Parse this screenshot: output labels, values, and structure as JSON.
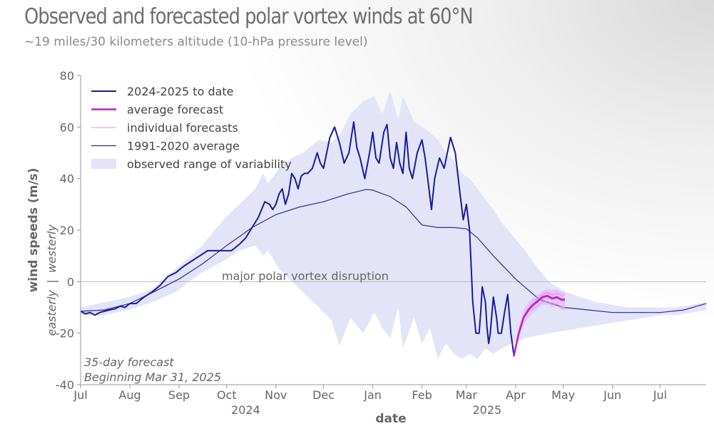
{
  "header": {
    "title": "Observed and forecasted polar vortex winds at 60°N",
    "subtitle": "~19 miles/30 kilometers altitude (10-hPa pressure level)"
  },
  "colors": {
    "observed": "#1a1aa0",
    "average_forecast": "#c21fc7",
    "individual_forecasts": "#e58ee8",
    "climatology": "#2a2aa8",
    "variability_band": "#e3e4f7",
    "zero_line": "#bbbbbb"
  },
  "annotations": {
    "disruption": "major polar vortex disruption",
    "forecast_line1": "35-day forecast",
    "forecast_line2": "Beginning Mar 31, 2025",
    "ylabel_sub_pos": "westerly",
    "ylabel_sub_sep": "|",
    "ylabel_sub_neg": "easterly"
  },
  "chart_data": {
    "type": "line",
    "title": "Observed and forecasted polar vortex winds at 60°N",
    "subtitle": "~19 miles/30 kilometers altitude (10-hPa pressure level)",
    "xlabel": "date",
    "ylabel": "wind speeds (m/s)",
    "ylim": [
      -40,
      80
    ],
    "yticks": [
      -40,
      -20,
      0,
      20,
      40,
      60,
      80
    ],
    "x_units": "days since Jul 1, 2024",
    "xlim": [
      0,
      394
    ],
    "x_ticks": [
      {
        "label": "Jul",
        "x": 0
      },
      {
        "label": "Aug",
        "x": 31
      },
      {
        "label": "Sep",
        "x": 62
      },
      {
        "label": "Oct",
        "x": 92
      },
      {
        "label": "Nov",
        "x": 123
      },
      {
        "label": "Dec",
        "x": 153
      },
      {
        "label": "Jan",
        "x": 184
      },
      {
        "label": "Feb",
        "x": 215
      },
      {
        "label": "Mar",
        "x": 243
      },
      {
        "label": "Apr",
        "x": 274
      },
      {
        "label": "May",
        "x": 304
      },
      {
        "label": "Jun",
        "x": 335
      },
      {
        "label": "Jul",
        "x": 365
      }
    ],
    "year_labels": [
      {
        "label": "2024",
        "x": 104
      },
      {
        "label": "2025",
        "x": 256
      }
    ],
    "legend": {
      "position": "top-left",
      "entries": [
        "2024-2025 to date",
        "average forecast",
        "individual forecasts",
        "1991-2020 average",
        "observed range of variability"
      ]
    },
    "series": [
      {
        "name": "observed range of variability",
        "kind": "band",
        "x": [
          0,
          15,
          30,
          45,
          60,
          75,
          90,
          100,
          110,
          115,
          118,
          125,
          133,
          140,
          150,
          158,
          163,
          170,
          178,
          185,
          190,
          195,
          200,
          203,
          210,
          215,
          220,
          225,
          230,
          235,
          240,
          245,
          250,
          255,
          260,
          265,
          272,
          280,
          287,
          295,
          305,
          315,
          325,
          335,
          345,
          355,
          365,
          375,
          385,
          394
        ],
        "upper": [
          -10,
          -8,
          -6,
          -3,
          5,
          13,
          24,
          30,
          36,
          42,
          38,
          44,
          48,
          50,
          55,
          54,
          57,
          65,
          70,
          72,
          65,
          74,
          63,
          72,
          62,
          60,
          58,
          55,
          50,
          47,
          42,
          40,
          36,
          32,
          28,
          23,
          18,
          12,
          6,
          0,
          -4,
          -6,
          -8,
          -9,
          -10,
          -10,
          -10,
          -10,
          -9,
          -8
        ],
        "lower": [
          -13,
          -13,
          -11,
          -8,
          -4,
          3,
          8,
          12,
          14,
          10,
          12,
          5,
          0,
          -4,
          -10,
          -15,
          -25,
          -14,
          -20,
          -12,
          -18,
          -22,
          -10,
          -26,
          -14,
          -24,
          -18,
          -30,
          -24,
          -28,
          -30,
          -28,
          -30,
          -26,
          -28,
          -26,
          -24,
          -22,
          -21,
          -20,
          -19,
          -18,
          -17,
          -16,
          -15,
          -14,
          -13,
          -13,
          -12,
          -11
        ]
      },
      {
        "name": "1991-2020 average",
        "x": [
          0,
          15,
          31,
          46,
          62,
          77,
          92,
          108,
          123,
          138,
          153,
          168,
          180,
          184,
          195,
          205,
          215,
          225,
          235,
          243,
          250,
          260,
          274,
          289,
          304,
          320,
          335,
          350,
          365,
          380,
          394
        ],
        "values": [
          -11.5,
          -11,
          -8.5,
          -4,
          1,
          7,
          14,
          21,
          26,
          29,
          31,
          34,
          35.8,
          35.5,
          33,
          29,
          22,
          21,
          21,
          20.5,
          17,
          10,
          1,
          -7,
          -10,
          -11,
          -12,
          -12,
          -12,
          -11,
          -8.5
        ]
      },
      {
        "name": "2024-2025 to date",
        "x": [
          0,
          3,
          6,
          9,
          12,
          15,
          18,
          22,
          25,
          28,
          31,
          35,
          40,
          45,
          50,
          55,
          60,
          65,
          70,
          75,
          80,
          85,
          90,
          95,
          100,
          104,
          108,
          112,
          116,
          119,
          121,
          123,
          125,
          127,
          129,
          131,
          133,
          135,
          137,
          139,
          141,
          143,
          146,
          149,
          151,
          153,
          155,
          157,
          160,
          163,
          166,
          169,
          172,
          174,
          176,
          179,
          182,
          184,
          186,
          188,
          191,
          193,
          195,
          197,
          199,
          201,
          203,
          205,
          207,
          209,
          212,
          215,
          217,
          219,
          221,
          223,
          226,
          229,
          233,
          236,
          239,
          241,
          243,
          245,
          247,
          249,
          251,
          252,
          253,
          255,
          256,
          257,
          258,
          260,
          262,
          263,
          265,
          267,
          269,
          271,
          273
        ],
        "values": [
          -11.5,
          -12.5,
          -12,
          -13,
          -12,
          -11.5,
          -11,
          -10.5,
          -9.5,
          -10,
          -8.5,
          -8.5,
          -6,
          -4,
          -1.5,
          2,
          3.5,
          6,
          8,
          10,
          12,
          12,
          12,
          12,
          14.5,
          17,
          21,
          25,
          31,
          30,
          28,
          30,
          34,
          36,
          30,
          34,
          42,
          40,
          36,
          41,
          42,
          42,
          44,
          50,
          46,
          44,
          50,
          56,
          60,
          54,
          46,
          50,
          62,
          52,
          48,
          40,
          50,
          58,
          48,
          46,
          58,
          61,
          48,
          44,
          54,
          46,
          42,
          58,
          44,
          40,
          50,
          55,
          48,
          38,
          28,
          40,
          48,
          44,
          56,
          50,
          34,
          24,
          30,
          20,
          -8,
          -20,
          -20,
          -12,
          -2,
          -8,
          -18,
          -24,
          -20,
          -6,
          -14,
          -20,
          -20,
          -12,
          -5,
          -20,
          -29
        ]
      },
      {
        "name": "average forecast",
        "x": [
          273,
          276,
          279,
          282,
          285,
          288,
          291,
          294,
          297,
          300,
          303,
          305
        ],
        "values": [
          -28.5,
          -20,
          -14,
          -11,
          -9,
          -7.5,
          -6,
          -5.5,
          -6.5,
          -6,
          -7,
          -7
        ]
      },
      {
        "name": "individual forecasts",
        "kind": "spread",
        "x": [
          273,
          276,
          279,
          282,
          285,
          288,
          291,
          294,
          297,
          300,
          303,
          305
        ],
        "upper": [
          -28,
          -18,
          -11,
          -8,
          -6.5,
          -5,
          -3.5,
          -3,
          -3,
          -3,
          -4,
          -4
        ],
        "lower": [
          -29,
          -22,
          -17,
          -14,
          -12,
          -10.5,
          -9,
          -9,
          -10,
          -9.5,
          -11,
          -11
        ]
      }
    ],
    "annotations": [
      "major polar vortex disruption",
      "35-day forecast",
      "Beginning Mar 31, 2025"
    ]
  }
}
